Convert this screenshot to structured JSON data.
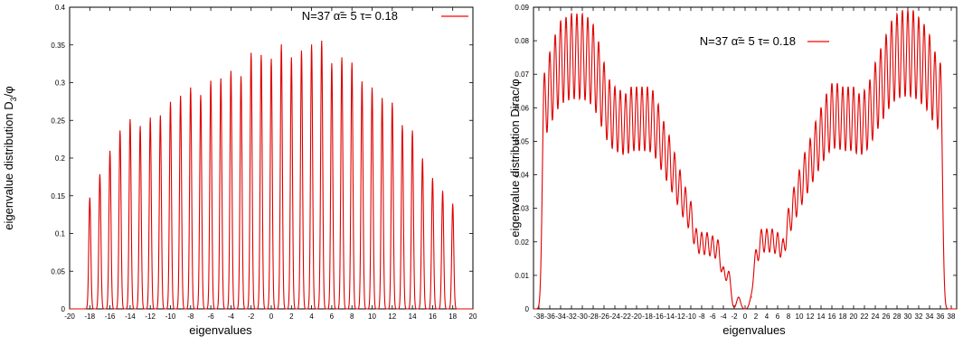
{
  "chart_data": [
    {
      "type": "line",
      "xlabel": "eigenvalues",
      "ylabel": "eigenvalue distribution D",
      "ylabel_sub": "3",
      "ylabel_tail": "/φ",
      "xlim": [
        -20,
        20
      ],
      "ylim": [
        0,
        0.4
      ],
      "xticks": [
        "-20",
        "-18",
        "-16",
        "-14",
        "-12",
        "-10",
        "-8",
        "-6",
        "-4",
        "-2",
        "0",
        "2",
        "4",
        "6",
        "8",
        "10",
        "12",
        "14",
        "16",
        "18",
        "20"
      ],
      "yticks": [
        "0",
        "0.05",
        "0.1",
        "0.15",
        "0.2",
        "0.25",
        "0.3",
        "0.35",
        "0.4"
      ],
      "legend": {
        "placement": "top-right",
        "label": "N=37  α̃= 5  τ= 0.18",
        "color": "#ff0000"
      },
      "series": [
        {
          "color": "#e00000",
          "peak_width": 0.14,
          "peaks": [
            {
              "x": -18,
              "y": 0.147
            },
            {
              "x": -17,
              "y": 0.178
            },
            {
              "x": -16,
              "y": 0.209
            },
            {
              "x": -15,
              "y": 0.236
            },
            {
              "x": -14,
              "y": 0.251
            },
            {
              "x": -13,
              "y": 0.242
            },
            {
              "x": -12,
              "y": 0.253
            },
            {
              "x": -11,
              "y": 0.256
            },
            {
              "x": -10,
              "y": 0.274
            },
            {
              "x": -9,
              "y": 0.282
            },
            {
              "x": -8,
              "y": 0.293
            },
            {
              "x": -7,
              "y": 0.283
            },
            {
              "x": -6,
              "y": 0.302
            },
            {
              "x": -5,
              "y": 0.305
            },
            {
              "x": -4,
              "y": 0.315
            },
            {
              "x": -3,
              "y": 0.308
            },
            {
              "x": -2,
              "y": 0.339
            },
            {
              "x": -1,
              "y": 0.336
            },
            {
              "x": 0,
              "y": 0.331
            },
            {
              "x": 1,
              "y": 0.35
            },
            {
              "x": 2,
              "y": 0.333
            },
            {
              "x": 3,
              "y": 0.342
            },
            {
              "x": 4,
              "y": 0.35
            },
            {
              "x": 5,
              "y": 0.355
            },
            {
              "x": 6,
              "y": 0.325
            },
            {
              "x": 7,
              "y": 0.333
            },
            {
              "x": 8,
              "y": 0.326
            },
            {
              "x": 9,
              "y": 0.301
            },
            {
              "x": 10,
              "y": 0.293
            },
            {
              "x": 11,
              "y": 0.279
            },
            {
              "x": 12,
              "y": 0.273
            },
            {
              "x": 13,
              "y": 0.243
            },
            {
              "x": 14,
              "y": 0.236
            },
            {
              "x": 15,
              "y": 0.199
            },
            {
              "x": 16,
              "y": 0.173
            },
            {
              "x": 17,
              "y": 0.156
            },
            {
              "x": 18,
              "y": 0.139
            }
          ]
        }
      ]
    },
    {
      "type": "line",
      "xlabel": "eigenvalues",
      "ylabel": "eigenvalue distribution Dirac/φ",
      "xlim": [
        -39,
        39
      ],
      "ylim": [
        0,
        0.09
      ],
      "xticks": [
        "-38",
        "-36",
        "-34",
        "-32",
        "-30",
        "-28",
        "-26",
        "-24",
        "-22",
        "-20",
        "-18",
        "-16",
        "-14",
        "-12",
        "-10",
        "-8",
        "-6",
        "-4",
        "-2",
        "0",
        "2",
        "4",
        "6",
        "8",
        "10",
        "12",
        "14",
        "16",
        "18",
        "20",
        "22",
        "24",
        "26",
        "28",
        "30",
        "32",
        "34",
        "36",
        "38"
      ],
      "yticks": [
        "0",
        "0.01",
        "0.02",
        "0.03",
        "0.04",
        "0.05",
        "0.06",
        "0.07",
        "0.08",
        "0.09"
      ],
      "legend": {
        "placement": "top-center",
        "label": "N=37  α̃= 5  τ= 0.18",
        "color": "#ff0000"
      },
      "series": [
        {
          "color": "#e00000",
          "peak_width": 0.5,
          "peaks": [
            {
              "x": -37,
              "y": 0.069
            },
            {
              "x": -36,
              "y": 0.074
            },
            {
              "x": -35,
              "y": 0.079
            },
            {
              "x": -34,
              "y": 0.083
            },
            {
              "x": -33,
              "y": 0.084
            },
            {
              "x": -32,
              "y": 0.085
            },
            {
              "x": -31,
              "y": 0.085
            },
            {
              "x": -30,
              "y": 0.085
            },
            {
              "x": -29,
              "y": 0.084
            },
            {
              "x": -28,
              "y": 0.082
            },
            {
              "x": -27,
              "y": 0.077
            },
            {
              "x": -26,
              "y": 0.071
            },
            {
              "x": -25,
              "y": 0.066
            },
            {
              "x": -24,
              "y": 0.064
            },
            {
              "x": -23,
              "y": 0.063
            },
            {
              "x": -22,
              "y": 0.062
            },
            {
              "x": -21,
              "y": 0.064
            },
            {
              "x": -20,
              "y": 0.064
            },
            {
              "x": -19,
              "y": 0.064
            },
            {
              "x": -18,
              "y": 0.064
            },
            {
              "x": -17,
              "y": 0.063
            },
            {
              "x": -16,
              "y": 0.059
            },
            {
              "x": -15,
              "y": 0.054
            },
            {
              "x": -14,
              "y": 0.05
            },
            {
              "x": -13,
              "y": 0.045
            },
            {
              "x": -12,
              "y": 0.04
            },
            {
              "x": -11,
              "y": 0.035
            },
            {
              "x": -10,
              "y": 0.031
            },
            {
              "x": -9,
              "y": 0.023
            },
            {
              "x": -8,
              "y": 0.022
            },
            {
              "x": -7,
              "y": 0.022
            },
            {
              "x": -6,
              "y": 0.021
            },
            {
              "x": -5,
              "y": 0.02
            },
            {
              "x": -4,
              "y": 0.012
            },
            {
              "x": -3,
              "y": 0.011
            },
            {
              "x": -1.2,
              "y": 0.0035
            },
            {
              "x": 1.2,
              "y": 0.0035
            },
            {
              "x": 2,
              "y": 0.017
            },
            {
              "x": 3,
              "y": 0.023
            },
            {
              "x": 4,
              "y": 0.023
            },
            {
              "x": 5,
              "y": 0.023
            },
            {
              "x": 6,
              "y": 0.022
            },
            {
              "x": 7,
              "y": 0.02
            },
            {
              "x": 8,
              "y": 0.029
            },
            {
              "x": 9,
              "y": 0.035
            },
            {
              "x": 10,
              "y": 0.04
            },
            {
              "x": 11,
              "y": 0.045
            },
            {
              "x": 12,
              "y": 0.049
            },
            {
              "x": 13,
              "y": 0.054
            },
            {
              "x": 14,
              "y": 0.058
            },
            {
              "x": 15,
              "y": 0.062
            },
            {
              "x": 16,
              "y": 0.065
            },
            {
              "x": 17,
              "y": 0.065
            },
            {
              "x": 18,
              "y": 0.064
            },
            {
              "x": 19,
              "y": 0.064
            },
            {
              "x": 20,
              "y": 0.064
            },
            {
              "x": 21,
              "y": 0.062
            },
            {
              "x": 22,
              "y": 0.063
            },
            {
              "x": 23,
              "y": 0.066
            },
            {
              "x": 24,
              "y": 0.071
            },
            {
              "x": 25,
              "y": 0.075
            },
            {
              "x": 26,
              "y": 0.079
            },
            {
              "x": 27,
              "y": 0.083
            },
            {
              "x": 28,
              "y": 0.085
            },
            {
              "x": 29,
              "y": 0.086
            },
            {
              "x": 30,
              "y": 0.086
            },
            {
              "x": 31,
              "y": 0.086
            },
            {
              "x": 32,
              "y": 0.084
            },
            {
              "x": 33,
              "y": 0.082
            },
            {
              "x": 34,
              "y": 0.079
            },
            {
              "x": 35,
              "y": 0.074
            },
            {
              "x": 36,
              "y": 0.072
            }
          ]
        }
      ]
    }
  ]
}
